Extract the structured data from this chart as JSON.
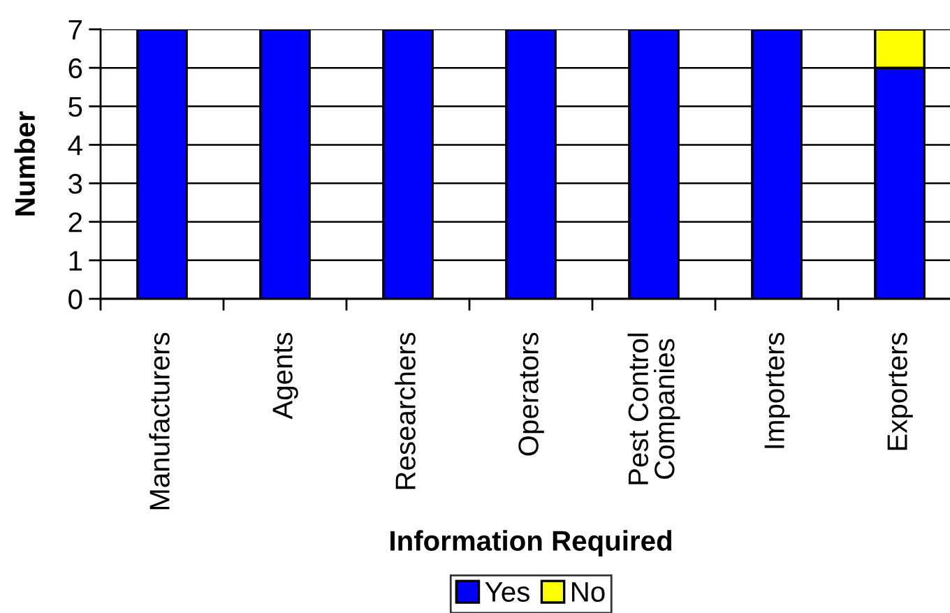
{
  "chart_data": {
    "type": "bar",
    "stacked": true,
    "xlabel": "Information Required",
    "ylabel": "Number",
    "categories": [
      "Manufacturers",
      "Agents",
      "Researchers",
      "Operators",
      "Pest Control\nCompanies",
      "Importers",
      "Exporters"
    ],
    "series": [
      {
        "name": "Yes",
        "color": "#0000ff",
        "values": [
          7,
          7,
          7,
          7,
          7,
          7,
          6
        ]
      },
      {
        "name": "No",
        "color": "#ffff00",
        "values": [
          null,
          null,
          null,
          null,
          null,
          null,
          1
        ]
      }
    ],
    "ylim": [
      0,
      7
    ],
    "yticks": [
      0,
      1,
      2,
      3,
      4,
      5,
      6,
      7
    ],
    "grid": "y",
    "legend": "bottom"
  }
}
